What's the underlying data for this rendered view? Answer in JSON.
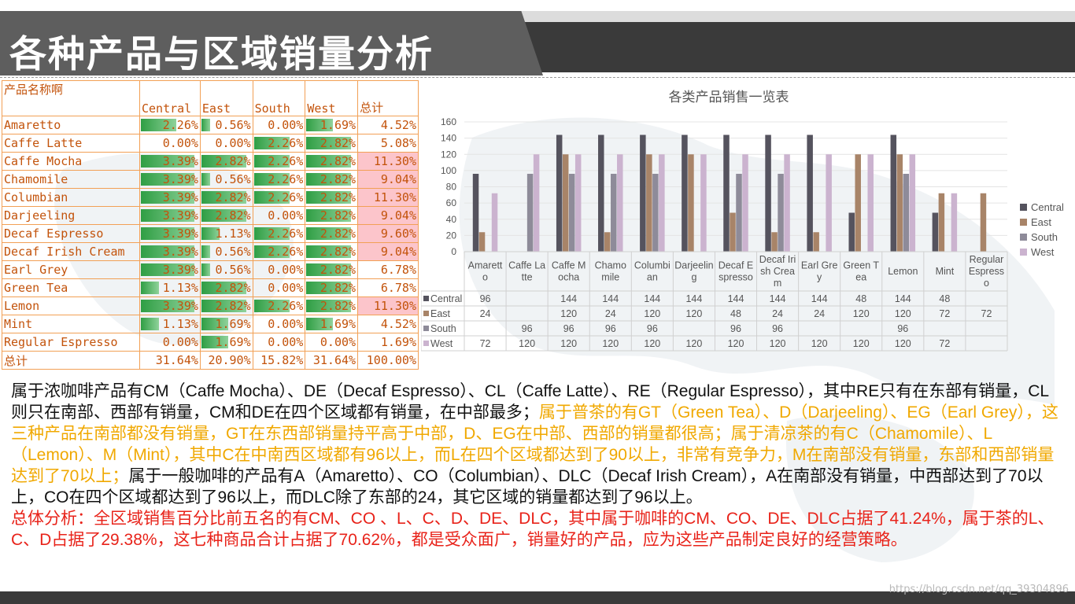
{
  "title": "各种产品与区域销量分析",
  "watermark": "https://blog.csdn.net/qq_39304896",
  "table": {
    "headers": [
      "产品名称啊",
      "Central",
      "East",
      "South",
      "West",
      "总计"
    ],
    "rows": [
      {
        "name": "Amaretto",
        "central": "2.26%",
        "east": "0.56%",
        "south": "0.00%",
        "west": "1.69%",
        "total": "4.52%",
        "central_pct": 0.667,
        "east_pct": 0.167,
        "south_pct": 0,
        "west_pct": 0.5,
        "highlight": false
      },
      {
        "name": "Caffe Latte",
        "central": "0.00%",
        "east": "0.00%",
        "south": "2.26%",
        "west": "2.82%",
        "total": "5.08%",
        "central_pct": 0,
        "east_pct": 0,
        "south_pct": 0.667,
        "west_pct": 0.833,
        "highlight": false
      },
      {
        "name": "Caffe Mocha",
        "central": "3.39%",
        "east": "2.82%",
        "south": "2.26%",
        "west": "2.82%",
        "total": "11.30%",
        "central_pct": 1,
        "east_pct": 0.833,
        "south_pct": 0.667,
        "west_pct": 0.833,
        "highlight": true
      },
      {
        "name": "Chamomile",
        "central": "3.39%",
        "east": "0.56%",
        "south": "2.26%",
        "west": "2.82%",
        "total": "9.04%",
        "central_pct": 1,
        "east_pct": 0.167,
        "south_pct": 0.667,
        "west_pct": 0.833,
        "highlight": true
      },
      {
        "name": "Columbian",
        "central": "3.39%",
        "east": "2.82%",
        "south": "2.26%",
        "west": "2.82%",
        "total": "11.30%",
        "central_pct": 1,
        "east_pct": 0.833,
        "south_pct": 0.667,
        "west_pct": 0.833,
        "highlight": true
      },
      {
        "name": "Darjeeling",
        "central": "3.39%",
        "east": "2.82%",
        "south": "0.00%",
        "west": "2.82%",
        "total": "9.04%",
        "central_pct": 1,
        "east_pct": 0.833,
        "south_pct": 0,
        "west_pct": 0.833,
        "highlight": true
      },
      {
        "name": "Decaf Espresso",
        "central": "3.39%",
        "east": "1.13%",
        "south": "2.26%",
        "west": "2.82%",
        "total": "9.60%",
        "central_pct": 1,
        "east_pct": 0.333,
        "south_pct": 0.667,
        "west_pct": 0.833,
        "highlight": true
      },
      {
        "name": "Decaf Irish Cream",
        "central": "3.39%",
        "east": "0.56%",
        "south": "2.26%",
        "west": "2.82%",
        "total": "9.04%",
        "central_pct": 1,
        "east_pct": 0.167,
        "south_pct": 0.667,
        "west_pct": 0.833,
        "highlight": true
      },
      {
        "name": "Earl Grey",
        "central": "3.39%",
        "east": "0.56%",
        "south": "0.00%",
        "west": "2.82%",
        "total": "6.78%",
        "central_pct": 1,
        "east_pct": 0.167,
        "south_pct": 0,
        "west_pct": 0.833,
        "highlight": false
      },
      {
        "name": "Green Tea",
        "central": "1.13%",
        "east": "2.82%",
        "south": "0.00%",
        "west": "2.82%",
        "total": "6.78%",
        "central_pct": 0.333,
        "east_pct": 0.833,
        "south_pct": 0,
        "west_pct": 0.833,
        "highlight": false
      },
      {
        "name": "Lemon",
        "central": "3.39%",
        "east": "2.82%",
        "south": "2.26%",
        "west": "2.82%",
        "total": "11.30%",
        "central_pct": 1,
        "east_pct": 0.833,
        "south_pct": 0.667,
        "west_pct": 0.833,
        "highlight": true
      },
      {
        "name": "Mint",
        "central": "1.13%",
        "east": "1.69%",
        "south": "0.00%",
        "west": "1.69%",
        "total": "4.52%",
        "central_pct": 0.333,
        "east_pct": 0.5,
        "south_pct": 0,
        "west_pct": 0.5,
        "highlight": false
      },
      {
        "name": "Regular Espresso",
        "central": "0.00%",
        "east": "1.69%",
        "south": "0.00%",
        "west": "0.00%",
        "total": "1.69%",
        "central_pct": 0,
        "east_pct": 0.5,
        "south_pct": 0,
        "west_pct": 0,
        "highlight": false
      }
    ],
    "totals": {
      "name": "总计",
      "central": "31.64%",
      "east": "20.90%",
      "south": "15.82%",
      "west": "31.64%",
      "total": "100.00%"
    }
  },
  "chart_data": {
    "type": "bar",
    "title": "各类产品销售一览表",
    "categories": [
      "Amaretto",
      "Caffe Latte",
      "Caffe Mocha",
      "Chamomile",
      "Columbian",
      "Darjeeling",
      "Decaf Espresso",
      "Decaf Irish Cream",
      "Earl Grey",
      "Green Tea",
      "Lemon",
      "Mint",
      "Regular Espresso"
    ],
    "category_labels": [
      [
        "Amarett",
        "o"
      ],
      [
        "Caffe La",
        "tte"
      ],
      [
        "Caffe M",
        "ocha"
      ],
      [
        "Chamo",
        "mile"
      ],
      [
        "Columbi",
        "an"
      ],
      [
        "Darjeelin",
        "g"
      ],
      [
        "Decaf E",
        "spresso"
      ],
      [
        "Decaf Iri",
        "sh Crea",
        "m"
      ],
      [
        "Earl Gre",
        "y"
      ],
      [
        "Green T",
        "ea"
      ],
      [
        "Lemon"
      ],
      [
        "Mint"
      ],
      [
        "Regular",
        "Espress",
        "o"
      ]
    ],
    "series": [
      {
        "name": "Central",
        "color": "#55535e",
        "values": [
          96,
          null,
          144,
          144,
          144,
          144,
          144,
          144,
          144,
          48,
          144,
          48,
          null
        ]
      },
      {
        "name": "East",
        "color": "#a88468",
        "values": [
          24,
          null,
          120,
          24,
          120,
          120,
          48,
          24,
          24,
          120,
          120,
          72,
          72
        ]
      },
      {
        "name": "South",
        "color": "#8e8b99",
        "values": [
          null,
          96,
          96,
          96,
          96,
          null,
          96,
          96,
          null,
          null,
          96,
          null,
          null
        ]
      },
      {
        "name": "West",
        "color": "#cbb3cf",
        "values": [
          72,
          120,
          120,
          120,
          120,
          120,
          120,
          120,
          120,
          120,
          120,
          72,
          null
        ]
      }
    ],
    "ylim": [
      0,
      160
    ],
    "yticks": [
      0,
      20,
      40,
      60,
      80,
      100,
      120,
      140,
      160
    ],
    "legend": "right",
    "data_table": true
  },
  "analysis": {
    "p1": "属于浓咖啡产品有CM（Caffe Mocha）、DE（Decaf Espresso）、CL（Caffe Latte）、RE（Regular Espresso），其中RE只有在东部有销量，CL则只在南部、西部有销量，CM和DE在四个区域都有销量，在中部最多；",
    "p2": "属于普茶的有GT（Green Tea）、D（Darjeeling）、EG（Earl Grey），这三种产品在南部都没有销量，GT在东西部销量持平高于中部，D、EG在中部、西部的销量都很高；属于清凉茶的有C（Chamomile）、L（Lemon）、M（Mint），其中C在中南西区域都有96以上，而L在四个区域都达到了90以上，非常有竞争力，M在南部没有销量，东部和西部销量达到了70以上；",
    "p3": "属于一般咖啡的产品有A（Amaretto）、CO（Columbian）、DLC（Decaf Irish Cream），A在南部没有销量，中西部达到了70以上，CO在四个区域都达到了96以上，而DLC除了东部的24，其它区域的销量都达到了96以上。",
    "summary": "总体分析：全区域销售百分比前五名的有CM、CO 、L、C、D、DE、DLC，其中属于咖啡的CM、CO、DE、DLC占据了41.24%，属于茶的L、C、D占据了29.38%，这七种商品合计占据了70.62%，都是受众面广，销量好的产品，应为这些产品制定良好的经营策略。"
  },
  "colors": {
    "header_dark": "#3a3a3a",
    "table_text": "#c3530b",
    "table_border": "#f2a055",
    "highlight": "#fcc5cb",
    "yellow_text": "#f0a800",
    "red_text": "#e8231a"
  }
}
